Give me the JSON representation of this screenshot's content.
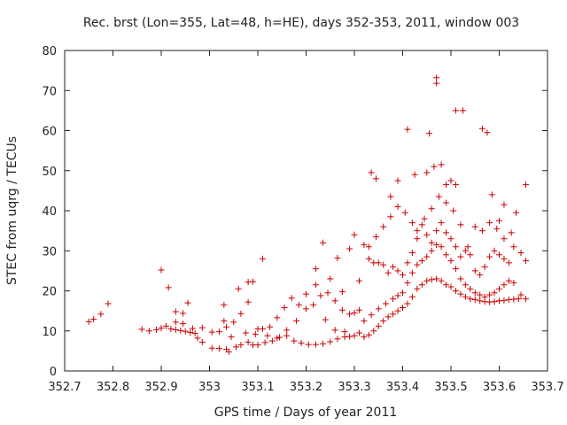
{
  "chart_data": {
    "type": "scatter",
    "title": "Rec. brst (Lon=355, Lat=48, h=HE), days 352-353, 2011, window 003",
    "xlabel": "GPS time / Days of year 2011",
    "ylabel": "STEC from uqrg / TECUs",
    "xlim": [
      352.7,
      353.7
    ],
    "ylim": [
      0,
      80
    ],
    "xticks": [
      352.7,
      352.8,
      352.9,
      353,
      353.1,
      353.2,
      353.3,
      353.4,
      353.5,
      353.6,
      353.7
    ],
    "xtick_labels": [
      "352.7",
      "352.8",
      "352.9",
      "353",
      "353.1",
      "353.2",
      "353.3",
      "353.4",
      "353.5",
      "353.6",
      "353.7"
    ],
    "yticks": [
      0,
      10,
      20,
      30,
      40,
      50,
      60,
      70,
      80
    ],
    "ytick_labels": [
      "0",
      "10",
      "20",
      "30",
      "40",
      "50",
      "60",
      "70",
      "80"
    ],
    "grid": false,
    "marker": "+",
    "color": "#cc0000",
    "series": [
      {
        "points": [
          [
            352.75,
            12.3
          ],
          [
            352.76,
            12.9
          ],
          [
            352.775,
            14.2
          ],
          [
            352.79,
            16.8
          ],
          [
            352.86,
            10.4
          ],
          [
            352.875,
            10.0
          ],
          [
            352.89,
            10.3
          ],
          [
            352.9,
            10.7
          ],
          [
            352.91,
            11.2
          ],
          [
            352.92,
            10.5
          ],
          [
            352.93,
            10.3
          ],
          [
            352.94,
            10.1
          ],
          [
            352.95,
            9.9
          ],
          [
            352.96,
            9.6
          ],
          [
            352.97,
            9.4
          ],
          [
            352.9,
            25.2
          ],
          [
            352.915,
            20.8
          ],
          [
            352.93,
            14.8
          ],
          [
            352.945,
            14.4
          ],
          [
            352.955,
            17.0
          ],
          [
            352.93,
            12.2
          ],
          [
            352.945,
            11.8
          ],
          [
            352.965,
            10.6
          ],
          [
            352.975,
            8.2
          ],
          [
            352.985,
            7.2
          ],
          [
            352.985,
            10.8
          ],
          [
            353.005,
            5.7
          ],
          [
            353.02,
            5.6
          ],
          [
            353.035,
            5.4
          ],
          [
            353.04,
            4.8
          ],
          [
            353.055,
            6.0
          ],
          [
            353.065,
            6.5
          ],
          [
            353.08,
            7.2
          ],
          [
            353.1,
            6.5
          ],
          [
            353.115,
            7.1
          ],
          [
            353.13,
            7.5
          ],
          [
            353.145,
            8.4
          ],
          [
            353.16,
            8.8
          ],
          [
            353.175,
            7.5
          ],
          [
            353.19,
            7.0
          ],
          [
            353.205,
            6.6
          ],
          [
            353.22,
            6.6
          ],
          [
            353.235,
            6.8
          ],
          [
            353.25,
            7.3
          ],
          [
            353.265,
            8.0
          ],
          [
            353.28,
            8.5
          ],
          [
            353.29,
            8.6
          ],
          [
            353.3,
            8.8
          ],
          [
            353.31,
            9.5
          ],
          [
            353.005,
            9.7
          ],
          [
            353.02,
            9.8
          ],
          [
            353.035,
            11.0
          ],
          [
            353.05,
            12.2
          ],
          [
            353.065,
            14.3
          ],
          [
            353.08,
            17.2
          ],
          [
            353.095,
            9.2
          ],
          [
            353.11,
            10.5
          ],
          [
            353.125,
            11.0
          ],
          [
            353.14,
            13.3
          ],
          [
            353.155,
            15.8
          ],
          [
            353.17,
            18.2
          ],
          [
            353.185,
            16.5
          ],
          [
            353.2,
            15.5
          ],
          [
            353.215,
            16.5
          ],
          [
            353.23,
            18.8
          ],
          [
            353.245,
            19.5
          ],
          [
            353.26,
            17.5
          ],
          [
            353.275,
            15.2
          ],
          [
            353.29,
            14.2
          ],
          [
            353.3,
            14.5
          ],
          [
            353.31,
            15.2
          ],
          [
            353.03,
            12.5
          ],
          [
            353.045,
            8.5
          ],
          [
            353.075,
            9.5
          ],
          [
            353.09,
            6.5
          ],
          [
            353.1,
            10.5
          ],
          [
            353.12,
            8.8
          ],
          [
            353.14,
            8.2
          ],
          [
            353.16,
            10.2
          ],
          [
            353.18,
            12.5
          ],
          [
            353.2,
            19.2
          ],
          [
            353.22,
            21.5
          ],
          [
            353.24,
            12.8
          ],
          [
            353.26,
            10.2
          ],
          [
            353.28,
            9.8
          ],
          [
            353.03,
            16.5
          ],
          [
            353.06,
            20.5
          ],
          [
            353.08,
            22.2
          ],
          [
            353.09,
            22.3
          ],
          [
            353.11,
            28.0
          ],
          [
            353.22,
            25.5
          ],
          [
            353.235,
            32.0
          ],
          [
            353.25,
            23.0
          ],
          [
            353.265,
            28.2
          ],
          [
            353.275,
            19.8
          ],
          [
            353.29,
            30.5
          ],
          [
            353.3,
            34.0
          ],
          [
            353.31,
            22.5
          ],
          [
            353.32,
            8.5
          ],
          [
            353.33,
            9.0
          ],
          [
            353.34,
            10.0
          ],
          [
            353.35,
            11.2
          ],
          [
            353.36,
            12.5
          ],
          [
            353.37,
            13.5
          ],
          [
            353.38,
            14.2
          ],
          [
            353.39,
            15.0
          ],
          [
            353.4,
            15.8
          ],
          [
            353.41,
            16.8
          ],
          [
            353.42,
            18.5
          ],
          [
            353.43,
            20.5
          ],
          [
            353.44,
            21.5
          ],
          [
            353.45,
            22.5
          ],
          [
            353.46,
            22.8
          ],
          [
            353.47,
            23.0
          ],
          [
            353.48,
            22.5
          ],
          [
            353.49,
            21.5
          ],
          [
            353.5,
            21.0
          ],
          [
            353.51,
            20.0
          ],
          [
            353.52,
            19.2
          ],
          [
            353.53,
            18.5
          ],
          [
            353.54,
            18.0
          ],
          [
            353.55,
            17.8
          ],
          [
            353.56,
            17.5
          ],
          [
            353.57,
            17.3
          ],
          [
            353.58,
            17.2
          ],
          [
            353.59,
            17.3
          ],
          [
            353.6,
            17.5
          ],
          [
            353.61,
            17.6
          ],
          [
            353.62,
            17.8
          ],
          [
            353.63,
            17.9
          ],
          [
            353.64,
            18.0
          ],
          [
            353.655,
            18.0
          ],
          [
            353.32,
            12.5
          ],
          [
            353.335,
            14.0
          ],
          [
            353.35,
            15.5
          ],
          [
            353.365,
            16.8
          ],
          [
            353.38,
            18.0
          ],
          [
            353.39,
            18.8
          ],
          [
            353.4,
            19.5
          ],
          [
            353.41,
            22.0
          ],
          [
            353.42,
            24.5
          ],
          [
            353.43,
            26.5
          ],
          [
            353.44,
            27.5
          ],
          [
            353.45,
            28.5
          ],
          [
            353.46,
            30.0
          ],
          [
            353.47,
            31.5
          ],
          [
            353.48,
            31.0
          ],
          [
            353.49,
            29.0
          ],
          [
            353.5,
            27.5
          ],
          [
            353.51,
            25.5
          ],
          [
            353.52,
            23.0
          ],
          [
            353.53,
            21.5
          ],
          [
            353.54,
            20.5
          ],
          [
            353.55,
            19.5
          ],
          [
            353.56,
            19.0
          ],
          [
            353.57,
            18.5
          ],
          [
            353.58,
            19.0
          ],
          [
            353.59,
            19.5
          ],
          [
            353.6,
            20.5
          ],
          [
            353.61,
            21.5
          ],
          [
            353.62,
            22.5
          ],
          [
            353.63,
            22.0
          ],
          [
            353.645,
            19.0
          ],
          [
            353.32,
            31.5
          ],
          [
            353.33,
            28.0
          ],
          [
            353.34,
            27.0
          ],
          [
            353.35,
            27.0
          ],
          [
            353.36,
            26.5
          ],
          [
            353.37,
            24.5
          ],
          [
            353.38,
            26.0
          ],
          [
            353.39,
            25.0
          ],
          [
            353.4,
            24.0
          ],
          [
            353.41,
            27.0
          ],
          [
            353.42,
            29.5
          ],
          [
            353.43,
            33.0
          ],
          [
            353.44,
            36.5
          ],
          [
            353.45,
            34.0
          ],
          [
            353.46,
            32.0
          ],
          [
            353.47,
            35.0
          ],
          [
            353.48,
            37.0
          ],
          [
            353.49,
            34.5
          ],
          [
            353.5,
            33.0
          ],
          [
            353.51,
            31.0
          ],
          [
            353.52,
            28.5
          ],
          [
            353.53,
            30.0
          ],
          [
            353.54,
            29.0
          ],
          [
            353.55,
            25.0
          ],
          [
            353.56,
            24.0
          ],
          [
            353.57,
            26.0
          ],
          [
            353.58,
            28.5
          ],
          [
            353.59,
            30.0
          ],
          [
            353.6,
            29.0
          ],
          [
            353.61,
            28.0
          ],
          [
            353.62,
            27.0
          ],
          [
            353.63,
            31.0
          ],
          [
            353.645,
            29.5
          ],
          [
            353.655,
            27.5
          ],
          [
            353.33,
            31.0
          ],
          [
            353.345,
            33.5
          ],
          [
            353.36,
            36.0
          ],
          [
            353.375,
            38.5
          ],
          [
            353.39,
            41.0
          ],
          [
            353.405,
            39.5
          ],
          [
            353.42,
            37.0
          ],
          [
            353.43,
            35.0
          ],
          [
            353.445,
            38.0
          ],
          [
            353.46,
            40.5
          ],
          [
            353.475,
            43.5
          ],
          [
            353.49,
            42.0
          ],
          [
            353.505,
            40.0
          ],
          [
            353.52,
            36.5
          ],
          [
            353.535,
            31.0
          ],
          [
            353.55,
            36.0
          ],
          [
            353.565,
            35.0
          ],
          [
            353.58,
            37.0
          ],
          [
            353.595,
            35.5
          ],
          [
            353.61,
            33.0
          ],
          [
            353.625,
            34.5
          ],
          [
            353.335,
            49.5
          ],
          [
            353.345,
            48.0
          ],
          [
            353.375,
            43.5
          ],
          [
            353.39,
            47.5
          ],
          [
            353.41,
            60.3
          ],
          [
            353.425,
            49.0
          ],
          [
            353.45,
            49.5
          ],
          [
            353.455,
            59.3
          ],
          [
            353.465,
            51.0
          ],
          [
            353.47,
            73.2
          ],
          [
            353.47,
            71.8
          ],
          [
            353.48,
            51.5
          ],
          [
            353.49,
            46.5
          ],
          [
            353.5,
            47.5
          ],
          [
            353.51,
            46.5
          ],
          [
            353.51,
            65.0
          ],
          [
            353.525,
            65.0
          ],
          [
            353.565,
            60.5
          ],
          [
            353.575,
            59.5
          ],
          [
            353.585,
            44.0
          ],
          [
            353.6,
            37.5
          ],
          [
            353.61,
            41.5
          ],
          [
            353.635,
            39.5
          ],
          [
            353.655,
            46.5
          ]
        ]
      }
    ]
  }
}
